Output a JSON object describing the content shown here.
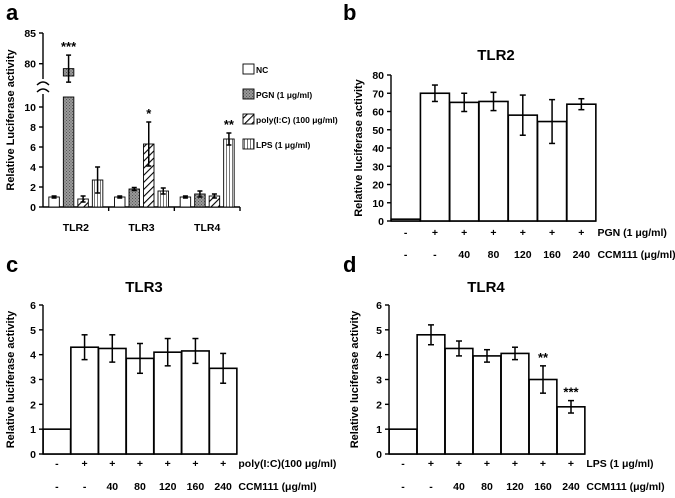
{
  "chart_data": [
    {
      "id": "a",
      "panel_label": "a",
      "type": "bar",
      "title": "",
      "ylabel": "Relative Luciferase activity",
      "xlabel": "",
      "ylim_lower": [
        0,
        11
      ],
      "ylim_upper": [
        78,
        85
      ],
      "yticks_lower": [
        0,
        2,
        4,
        6,
        8,
        10
      ],
      "yticks_upper": [
        80,
        85
      ],
      "categories": [
        "TLR2",
        "TLR3",
        "TLR4"
      ],
      "series": [
        {
          "name": "NC",
          "pattern": "white",
          "values": [
            1.0,
            1.0,
            1.0
          ],
          "errors": [
            0.1,
            0.1,
            0.1
          ],
          "stars": [
            "",
            "",
            ""
          ]
        },
        {
          "name": "PGN (1 μg/ml)",
          "pattern": "gray",
          "values": [
            79.2,
            1.8,
            1.3
          ],
          "errors": [
            2.2,
            0.15,
            0.3
          ],
          "stars": [
            "***",
            "",
            ""
          ]
        },
        {
          "name": "poly(I:C) (100 μg/ml)",
          "pattern": "hatch",
          "values": [
            0.8,
            6.3,
            1.1
          ],
          "errors": [
            0.3,
            2.2,
            0.2
          ],
          "stars": [
            "",
            "*",
            ""
          ]
        },
        {
          "name": "LPS (1 μg/ml)",
          "pattern": "vlines",
          "values": [
            2.7,
            1.6,
            6.8
          ],
          "errors": [
            1.3,
            0.3,
            0.6
          ],
          "stars": [
            "",
            "",
            "**"
          ]
        }
      ]
    },
    {
      "id": "b",
      "panel_label": "b",
      "type": "bar",
      "title": "TLR2",
      "ylabel": "Relative luciferase activity",
      "ylim": [
        0,
        80
      ],
      "yticks": [
        0,
        10,
        20,
        30,
        40,
        50,
        60,
        70,
        80
      ],
      "values": [
        1,
        70,
        65,
        65.5,
        58,
        54.5,
        64
      ],
      "errors": [
        0,
        4.5,
        5,
        5,
        11,
        12,
        3
      ],
      "stars": [
        "",
        "",
        "",
        "",
        "",
        "",
        ""
      ],
      "row1_label": "PGN (1 μg/ml)",
      "row1": [
        "-",
        "+",
        "+",
        "+",
        "+",
        "+",
        "+"
      ],
      "row2_label": "CCM111 (μg/ml)",
      "row2": [
        "-",
        "-",
        "40",
        "80",
        "120",
        "160",
        "240"
      ]
    },
    {
      "id": "c",
      "panel_label": "c",
      "type": "bar",
      "title": "TLR3",
      "ylabel": "Relative luciferase activity",
      "ylim": [
        0,
        6
      ],
      "yticks": [
        0,
        1,
        2,
        3,
        4,
        5,
        6
      ],
      "values": [
        1,
        4.3,
        4.25,
        3.85,
        4.1,
        4.15,
        3.45
      ],
      "errors": [
        0,
        0.5,
        0.55,
        0.6,
        0.55,
        0.5,
        0.6
      ],
      "stars": [
        "",
        "",
        "",
        "",
        "",
        "",
        ""
      ],
      "row1_label": "poly(I:C)(100 μg/ml)",
      "row1": [
        "-",
        "+",
        "+",
        "+",
        "+",
        "+",
        "+"
      ],
      "row2_label": "CCM111 (μg/ml)",
      "row2": [
        "-",
        "-",
        "40",
        "80",
        "120",
        "160",
        "240"
      ]
    },
    {
      "id": "d",
      "panel_label": "d",
      "type": "bar",
      "title": "TLR4",
      "ylabel": "Relative luciferase activity",
      "ylim": [
        0,
        6
      ],
      "yticks": [
        0,
        1,
        2,
        3,
        4,
        5,
        6
      ],
      "values": [
        1,
        4.8,
        4.25,
        3.95,
        4.05,
        3.0,
        1.9
      ],
      "errors": [
        0,
        0.4,
        0.3,
        0.25,
        0.25,
        0.55,
        0.25
      ],
      "stars": [
        "",
        "",
        "",
        "",
        "",
        "**",
        "***"
      ],
      "row1_label": "LPS (1 μg/ml)",
      "row1": [
        "-",
        "+",
        "+",
        "+",
        "+",
        "+",
        "+"
      ],
      "row2_label": "CCM111 (μg/ml)",
      "row2": [
        "-",
        "-",
        "40",
        "80",
        "120",
        "160",
        "240"
      ]
    }
  ]
}
